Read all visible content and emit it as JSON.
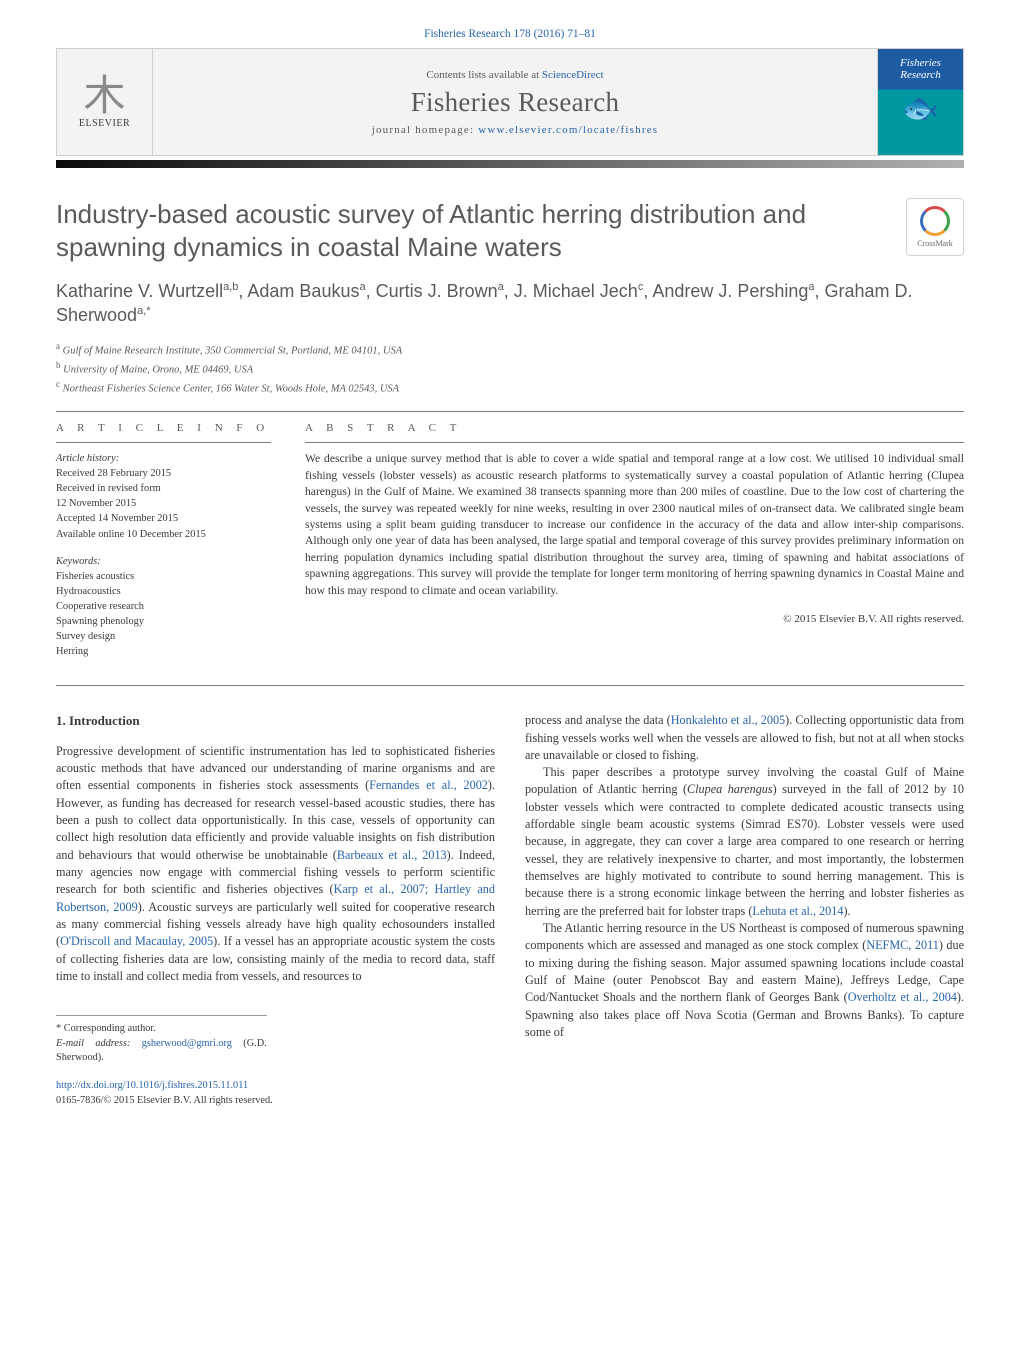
{
  "journal": {
    "volinfo": "Fisheries Research 178 (2016) 71–81",
    "contents_prefix": "Contents lists available at ",
    "contents_linktext": "ScienceDirect",
    "name": "Fisheries Research",
    "home_prefix": "journal homepage: ",
    "home_url": "www.elsevier.com/locate/fishres",
    "publisher": "ELSEVIER",
    "cover_name_1": "Fisheries",
    "cover_name_2": "Research"
  },
  "crossmark": "CrossMark",
  "article": {
    "title": "Industry-based acoustic survey of Atlantic herring distribution and spawning dynamics in coastal Maine waters",
    "authors_html": "Katharine V. Wurtzell<sup>a,b</sup>, Adam Baukus<sup>a</sup>, Curtis J. Brown<sup>a</sup>, J. Michael Jech<sup>c</sup>, Andrew J. Pershing<sup>a</sup>, Graham D. Sherwood<sup>a,*</sup>",
    "affiliations": [
      {
        "sup": "a",
        "text": "Gulf of Maine Research Institute, 350 Commercial St, Portland, ME 04101, USA"
      },
      {
        "sup": "b",
        "text": "University of Maine, Orono, ME 04469, USA"
      },
      {
        "sup": "c",
        "text": "Northeast Fisheries Science Center, 166 Water St, Woods Hole, MA 02543, USA"
      }
    ]
  },
  "info": {
    "heading_info": "A R T I C L E   I N F O",
    "heading_abs": "A B S T R A C T",
    "history_label": "Article history:",
    "history": [
      "Received 28 February 2015",
      "Received in revised form",
      "12 November 2015",
      "Accepted 14 November 2015",
      "Available online 10 December 2015"
    ],
    "keywords_label": "Keywords:",
    "keywords": [
      "Fisheries acoustics",
      "Hydroacoustics",
      "Cooperative research",
      "Spawning phenology",
      "Survey design",
      "Herring"
    ]
  },
  "abstract": "We describe a unique survey method that is able to cover a wide spatial and temporal range at a low cost. We utilised 10 individual small fishing vessels (lobster vessels) as acoustic research platforms to systematically survey a coastal population of Atlantic herring (Clupea harengus) in the Gulf of Maine. We examined 38 transects spanning more than 200 miles of coastline. Due to the low cost of chartering the vessels, the survey was repeated weekly for nine weeks, resulting in over 2300 nautical miles of on-transect data. We calibrated single beam systems using a split beam guiding transducer to increase our confidence in the accuracy of the data and allow inter-ship comparisons. Although only one year of data has been analysed, the large spatial and temporal coverage of this survey provides preliminary information on herring population dynamics including spatial distribution throughout the survey area, timing of spawning and habitat associations of spawning aggregations. This survey will provide the template for longer term monitoring of herring spawning dynamics in Coastal Maine and how this may respond to climate and ocean variability.",
  "copyright_line": "© 2015 Elsevier B.V. All rights reserved.",
  "section1": {
    "heading": "1.  Introduction"
  },
  "footnotes": {
    "corr": "* Corresponding author.",
    "email_label": "E-mail address: ",
    "email": "gsherwood@gmri.org",
    "email_tail": " (G.D. Sherwood)."
  },
  "doi": {
    "url": "http://dx.doi.org/10.1016/j.fishres.2015.11.011",
    "line2": "0165-7836/© 2015 Elsevier B.V. All rights reserved."
  },
  "colors": {
    "link": "#2964aa",
    "rule": "#7a7a7a",
    "text": "#3a3a3a",
    "grad_from": "#0a0a0a",
    "grad_to": "#b0b0b0"
  }
}
